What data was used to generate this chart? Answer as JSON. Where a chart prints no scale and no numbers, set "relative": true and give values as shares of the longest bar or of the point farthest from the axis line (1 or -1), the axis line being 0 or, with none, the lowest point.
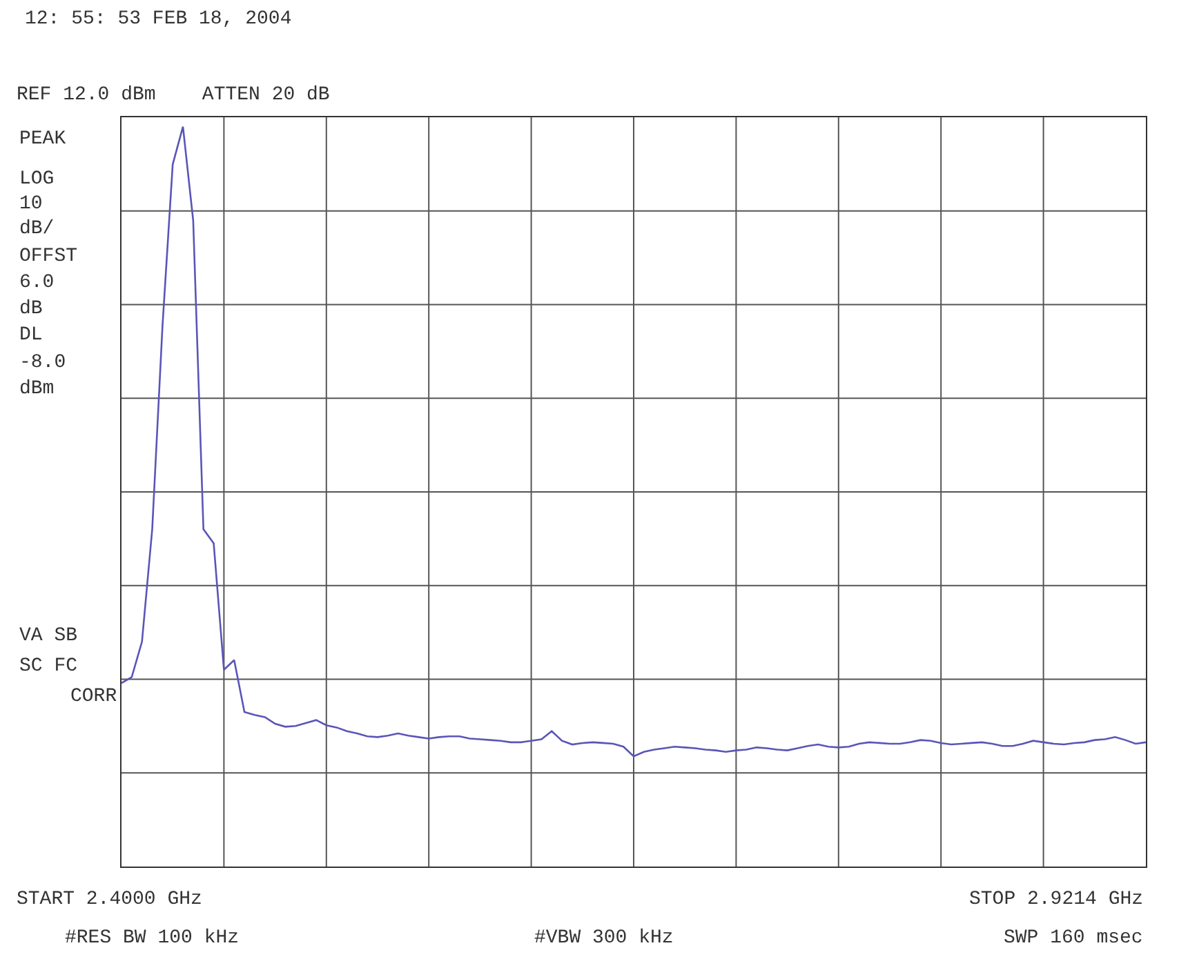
{
  "chart_data": {
    "type": "line",
    "title": "12: 55: 53 FEB 18, 2004",
    "subtitle": "REF 12.0 dBm    ATTEN 20 dB",
    "annotations": [
      "PEAK",
      "LOG",
      "10",
      "dB/",
      "OFFST",
      "6.0",
      "dB",
      "DL",
      "-8.0",
      "dBm",
      "VA SB",
      "SC FC",
      "CORR",
      "START 2.4000 GHz",
      "STOP 2.9214 GHz",
      "#RES BW 100 kHz",
      "#VBW 300 kHz",
      "SWP 160 msec"
    ],
    "categories": [
      null,
      null,
      null,
      null,
      null,
      null,
      null,
      null,
      null,
      null,
      null,
      null,
      null,
      null,
      null,
      null,
      null,
      null,
      null,
      null,
      null,
      null,
      null,
      null,
      null,
      null,
      null,
      null,
      null,
      null,
      null,
      null,
      null,
      null,
      null,
      null,
      null,
      null,
      null,
      null,
      null,
      null,
      null,
      null,
      null,
      null,
      null,
      null,
      null,
      null,
      null,
      null,
      null,
      null,
      null,
      null,
      null,
      null,
      null,
      null,
      null,
      null,
      null,
      null,
      null,
      null,
      null,
      null,
      null,
      null,
      null,
      null,
      null,
      null,
      null,
      null,
      null,
      null,
      null,
      null,
      null,
      null,
      null,
      null,
      null,
      null,
      null,
      null,
      null,
      null,
      null,
      null,
      null,
      null,
      null,
      null,
      null,
      null,
      null,
      null,
      null
    ],
    "relative": true,
    "series": [
      {
        "color": "#5a55b8",
        "values": [
          0.248,
          0.256,
          0.304,
          0.456,
          0.73,
          0.949,
          1,
          0.873,
          0.456,
          0.437,
          0.266,
          0.279,
          0.209,
          0.205,
          0.202,
          0.193,
          0.189,
          0.19,
          0.194,
          0.198,
          0.191,
          0.188,
          0.183,
          0.18,
          0.176,
          0.175,
          0.177,
          0.18,
          0.177,
          0.175,
          0.173,
          0.175,
          0.176,
          0.176,
          0.173,
          0.172,
          0.171,
          0.17,
          0.168,
          0.168,
          0.17,
          0.172,
          0.183,
          0.17,
          0.165,
          0.167,
          0.168,
          0.167,
          0.166,
          0.162,
          0.149,
          0.155,
          0.158,
          0.16,
          0.162,
          0.161,
          0.16,
          0.158,
          0.157,
          0.155,
          0.157,
          0.158,
          0.161,
          0.16,
          0.158,
          0.157,
          0.16,
          0.163,
          0.165,
          0.162,
          0.161,
          0.162,
          0.166,
          0.168,
          0.167,
          0.166,
          0.166,
          0.168,
          0.171,
          0.17,
          0.167,
          0.165,
          0.166,
          0.167,
          0.168,
          0.166,
          0.163,
          0.163,
          0.166,
          0.17,
          0.168,
          0.166,
          0.165,
          0.167,
          0.168,
          0.171,
          0.172,
          0.175,
          0.171,
          0.166,
          0.168
        ]
      }
    ],
    "grid": true,
    "marker": "none",
    "line_style": "solid"
  }
}
